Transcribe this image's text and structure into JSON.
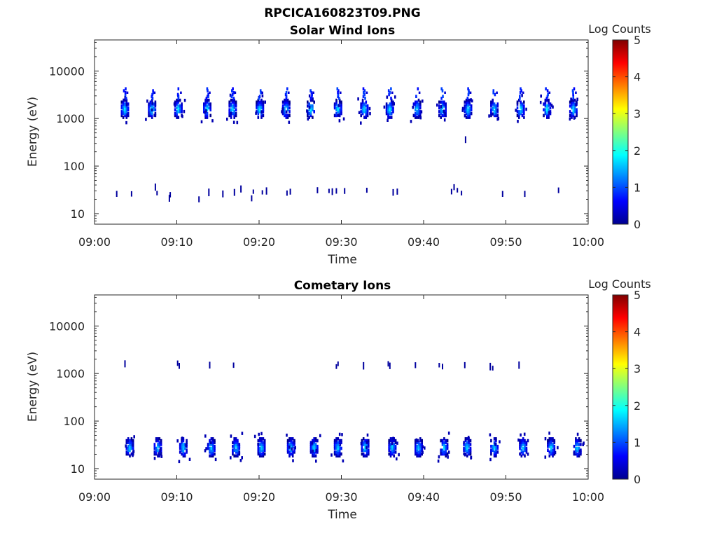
{
  "figure": {
    "title": "RPCICA160823T09.PNG"
  },
  "chart_data": [
    {
      "type": "heatmap",
      "title": "Solar Wind Ions",
      "xlabel": "Time",
      "ylabel": "Energy (eV)",
      "x_ticks": [
        "09:00",
        "09:10",
        "09:20",
        "09:30",
        "09:40",
        "09:50",
        "10:00"
      ],
      "y_ticks": [
        "10",
        "100",
        "1000",
        "10000"
      ],
      "y_scale": "log",
      "xlim_minutes": [
        0,
        60
      ],
      "ylim_eV": [
        6,
        45000
      ],
      "colorbar": {
        "label": "Log Counts",
        "min": 0,
        "max": 5,
        "ticks": [
          "0",
          "1",
          "2",
          "3",
          "4",
          "5"
        ]
      },
      "bursts_minute": [
        3.7,
        7.0,
        10.2,
        13.7,
        16.8,
        20.1,
        23.3,
        26.3,
        29.6,
        32.8,
        35.9,
        39.2,
        42.3,
        45.4,
        48.6,
        51.8,
        55.0,
        58.2
      ],
      "burst_peak_energy_eV": 1600,
      "burst_high_energy_eV": 3500,
      "burst_peak_log_counts": 1.8,
      "low_energy_events": [
        [
          2.7,
          26
        ],
        [
          4.5,
          26
        ],
        [
          7.4,
          36
        ],
        [
          7.6,
          27
        ],
        [
          9.1,
          21
        ],
        [
          9.2,
          25
        ],
        [
          12.7,
          20
        ],
        [
          13.9,
          28
        ],
        [
          15.6,
          26
        ],
        [
          17.0,
          28
        ],
        [
          17.8,
          33
        ],
        [
          19.1,
          21
        ],
        [
          19.3,
          29
        ],
        [
          20.4,
          28
        ],
        [
          20.9,
          30
        ],
        [
          23.4,
          27
        ],
        [
          23.8,
          29
        ],
        [
          27.1,
          31
        ],
        [
          28.5,
          30
        ],
        [
          28.9,
          29
        ],
        [
          29.4,
          30
        ],
        [
          30.4,
          30
        ],
        [
          33.1,
          31
        ],
        [
          36.3,
          28
        ],
        [
          36.8,
          29
        ],
        [
          43.4,
          29
        ],
        [
          43.7,
          36
        ],
        [
          44.1,
          31
        ],
        [
          44.6,
          27
        ],
        [
          45.1,
          360
        ],
        [
          49.6,
          26
        ],
        [
          52.3,
          26
        ],
        [
          56.4,
          31
        ]
      ]
    },
    {
      "type": "heatmap",
      "title": "Cometary Ions",
      "xlabel": "Time",
      "ylabel": "Energy (eV)",
      "x_ticks": [
        "09:00",
        "09:10",
        "09:20",
        "09:30",
        "09:40",
        "09:50",
        "10:00"
      ],
      "y_ticks": [
        "10",
        "100",
        "1000",
        "10000"
      ],
      "y_scale": "log",
      "xlim_minutes": [
        0,
        60
      ],
      "ylim_eV": [
        6,
        45000
      ],
      "colorbar": {
        "label": "Log Counts",
        "min": 0,
        "max": 5,
        "ticks": [
          "0",
          "1",
          "2",
          "3",
          "4",
          "5"
        ]
      },
      "bursts_minute": [
        4.3,
        7.7,
        10.8,
        14.2,
        17.2,
        20.3,
        23.9,
        26.7,
        29.6,
        32.9,
        36.2,
        39.4,
        42.5,
        45.3,
        48.6,
        52.1,
        55.5,
        58.7
      ],
      "burst_peak_energy_eV": 28,
      "burst_peak_log_counts": 1.7,
      "high_energy_events": [
        [
          3.7,
          1600
        ],
        [
          10.1,
          1650
        ],
        [
          10.3,
          1450
        ],
        [
          14.0,
          1500
        ],
        [
          16.9,
          1500
        ],
        [
          29.4,
          1400
        ],
        [
          29.6,
          1600
        ],
        [
          32.7,
          1450
        ],
        [
          35.7,
          1600
        ],
        [
          35.9,
          1450
        ],
        [
          39.0,
          1500
        ],
        [
          41.9,
          1500
        ],
        [
          42.3,
          1400
        ],
        [
          45.0,
          1500
        ],
        [
          48.1,
          1400
        ],
        [
          48.4,
          1300
        ],
        [
          51.6,
          1500
        ]
      ]
    }
  ]
}
